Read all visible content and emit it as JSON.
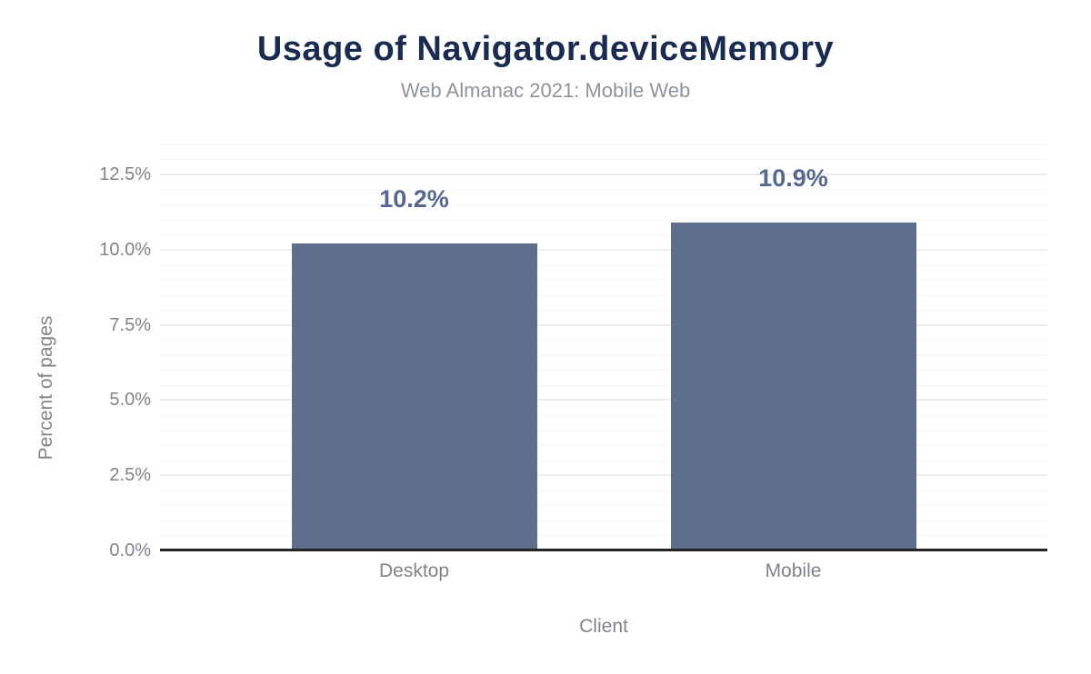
{
  "chart_data": {
    "type": "bar",
    "title": "Usage of Navigator.deviceMemory",
    "subtitle": "Web Almanac 2021: Mobile Web",
    "xlabel": "Client",
    "ylabel": "Percent of pages",
    "categories": [
      "Desktop",
      "Mobile"
    ],
    "values": [
      10.2,
      10.9
    ],
    "value_labels": [
      "10.2%",
      "10.9%"
    ],
    "unit": "percent of pages",
    "ylim": [
      0,
      13.77
    ],
    "y_major_ticks": [
      0,
      2.5,
      5,
      7.5,
      10,
      12.5
    ],
    "y_tick_labels": [
      "0.0%",
      "2.5%",
      "5.0%",
      "7.5%",
      "10.0%",
      "12.5%"
    ],
    "y_minor_step": 0.5,
    "grid": "horizontal major + minor, no vertical",
    "legend": "none"
  },
  "colors": {
    "bar": "#5e6e8c",
    "value_label": "#56688e",
    "title": "#1a2b50",
    "subtitle": "#8e9499",
    "tick_label": "#7f8489",
    "axis_title": "#7f8489",
    "major_gridline": "#ececec",
    "minor_gridline": "#f5f5f6",
    "axis_line": "#262626",
    "background": "#ffffff"
  }
}
